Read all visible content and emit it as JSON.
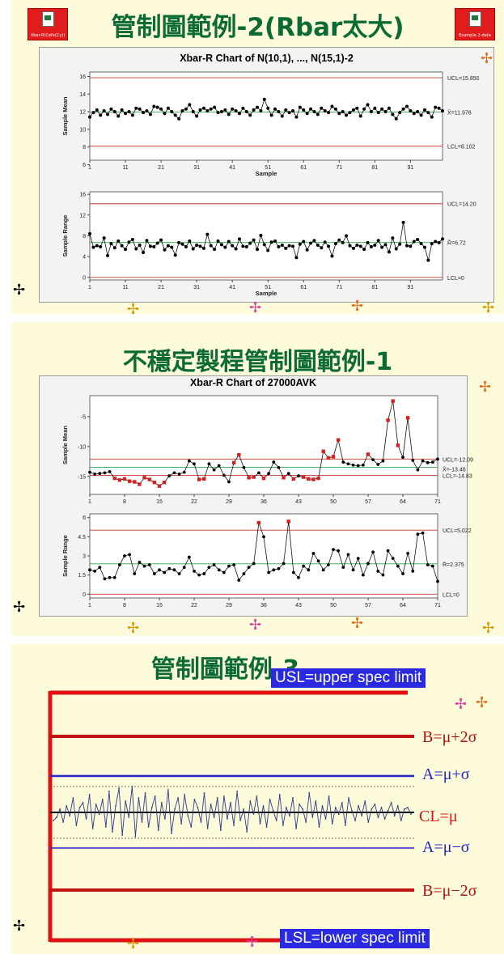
{
  "slide1": {
    "title": "管制圖範例-2(Rbar太大)",
    "icon_left_label": "Xbar-R(Cefe(Cy))",
    "icon_right_label": "Example 2-data",
    "chart_title": "Xbar-R Chart of N(10,1), ..., N(15,1)-2",
    "colors": {
      "limit": "#c0392b",
      "center": "#2ea44a",
      "series": "#000000"
    }
  },
  "slide2": {
    "title": "不穩定製程管制圖範例-1",
    "chart_title": "Xbar-R Chart of 27000AVK"
  },
  "slide3": {
    "title": "管制圖範例-3",
    "usl": "USL=upper spec limit",
    "lsl": "LSL=lower spec limit",
    "b_plus": "B=μ+2σ",
    "a_plus": "A=μ+σ",
    "cl": "CL=μ",
    "a_minus": "A=μ−σ",
    "b_minus": "B=μ−2σ"
  },
  "chart_data": [
    {
      "type": "line",
      "id": "c1_mean",
      "ylabel": "Sample Mean",
      "xlabel": "Sample",
      "xlim": [
        1,
        100
      ],
      "ylim": [
        6.5,
        16.5
      ],
      "yticks": [
        6,
        8,
        10,
        12,
        14,
        16
      ],
      "xticks": [
        1,
        11,
        21,
        31,
        41,
        51,
        61,
        71,
        81,
        91
      ],
      "limits": [
        {
          "name": "UCL",
          "label": "UCL=15.850",
          "value": 15.85,
          "kind": "limit"
        },
        {
          "name": "center",
          "label": "X̄=11.976",
          "value": 11.976,
          "kind": "center"
        },
        {
          "name": "LCL",
          "label": "LCL=8.102",
          "value": 8.102,
          "kind": "limit"
        }
      ],
      "values": [
        11.4,
        11.9,
        12.2,
        11.6,
        12.1,
        11.7,
        12.3,
        12.0,
        11.5,
        12.2,
        11.8,
        12.0,
        11.6,
        12.4,
        12.3,
        11.9,
        12.1,
        11.7,
        12.6,
        12.5,
        12.3,
        11.8,
        12.4,
        12.0,
        11.6,
        11.2,
        12.1,
        12.3,
        12.8,
        12.0,
        11.5,
        12.2,
        12.4,
        12.1,
        12.3,
        12.5,
        11.9,
        12.0,
        12.2,
        11.7,
        12.3,
        12.1,
        11.8,
        12.4,
        12.0,
        11.6,
        12.2,
        12.5,
        12.1,
        13.4,
        12.4,
        11.6,
        12.3,
        12.0,
        11.5,
        12.2,
        11.9,
        12.1,
        11.4,
        12.5,
        12.2,
        11.8,
        12.3,
        12.0,
        11.7,
        12.4,
        12.1,
        11.9,
        12.6,
        12.3,
        11.8,
        12.0,
        11.6,
        11.9,
        12.2,
        12.4,
        11.5,
        12.3,
        12.8,
        12.0,
        12.4,
        11.9,
        12.3,
        12.0,
        12.4,
        11.7,
        11.2,
        11.9,
        12.3,
        12.6,
        12.1,
        11.8,
        12.0,
        11.6,
        12.2,
        11.9,
        11.4,
        12.5,
        12.4,
        12.1
      ]
    },
    {
      "type": "line",
      "id": "c1_range",
      "ylabel": "Sample Range",
      "xlabel": "Sample",
      "xlim": [
        1,
        100
      ],
      "ylim": [
        -0.5,
        16.5
      ],
      "yticks": [
        0,
        4,
        8,
        12,
        16
      ],
      "xticks": [
        1,
        11,
        21,
        31,
        41,
        51,
        61,
        71,
        81,
        91
      ],
      "limits": [
        {
          "name": "UCL",
          "label": "UCL=14.20",
          "value": 14.2,
          "kind": "limit"
        },
        {
          "name": "center",
          "label": "R̄=6.72",
          "value": 6.72,
          "kind": "center"
        },
        {
          "name": "LCL",
          "label": "LCL=0",
          "value": 0,
          "kind": "limit"
        }
      ],
      "values": [
        8.4,
        5.8,
        6.1,
        5.9,
        7.6,
        4.2,
        6.5,
        5.7,
        7.0,
        6.1,
        5.4,
        6.8,
        7.3,
        5.5,
        6.2,
        4.8,
        7.1,
        6.0,
        5.9,
        6.6,
        7.2,
        5.3,
        6.1,
        5.8,
        4.3,
        6.7,
        6.4,
        5.9,
        7.0,
        5.5,
        6.2,
        6.0,
        5.6,
        8.3,
        6.1,
        5.4,
        7.0,
        6.3,
        5.8,
        6.9,
        6.1,
        5.5,
        7.4,
        6.0,
        5.9,
        6.6,
        7.2,
        5.4,
        8.1,
        6.3,
        5.2,
        6.8,
        7.0,
        5.9,
        6.2,
        5.6,
        6.1,
        6.0,
        3.8,
        6.4,
        6.9,
        5.3,
        6.6,
        7.1,
        6.2,
        5.7,
        6.8,
        6.0,
        4.1,
        6.5,
        7.2,
        6.7,
        8.0,
        6.1,
        5.6,
        6.2,
        6.0,
        5.4,
        6.7,
        5.9,
        6.2,
        7.1,
        5.8,
        6.3,
        4.9,
        7.6,
        5.5,
        6.4,
        10.6,
        6.1,
        6.0,
        6.9,
        7.3,
        6.5,
        5.8,
        3.3,
        6.5,
        6.9,
        6.7,
        7.4
      ]
    },
    {
      "type": "line",
      "id": "c2_mean",
      "ylabel": "Sample Mean",
      "xlabel": "",
      "xlim": [
        1,
        71
      ],
      "ylim": [
        -18,
        -1.5
      ],
      "yticks": [
        -15,
        -10,
        -5
      ],
      "xticks": [
        1,
        8,
        15,
        22,
        29,
        36,
        43,
        50,
        57,
        64,
        71
      ],
      "limits": [
        {
          "name": "UCL",
          "label": "UCL=-12.09",
          "value": -12.09,
          "kind": "limit"
        },
        {
          "name": "center",
          "label": "X̄=-13.46",
          "value": -13.46,
          "kind": "center"
        },
        {
          "name": "LCL",
          "label": "LCL=-14.83",
          "value": -14.83,
          "kind": "limit"
        }
      ],
      "values": [
        -14.3,
        -14.6,
        -14.5,
        -14.4,
        -14.2,
        -15.3,
        -15.6,
        -15.4,
        -15.8,
        -15.9,
        -16.3,
        -15.2,
        -15.5,
        -16.0,
        -16.6,
        -16.0,
        -14.9,
        -14.4,
        -14.6,
        -14.3,
        -12.4,
        -12.9,
        -15.5,
        -15.4,
        -12.9,
        -13.9,
        -13.2,
        -14.8,
        -15.9,
        -12.7,
        -11.4,
        -13.5,
        -15.2,
        -15.1,
        -14.4,
        -15.3,
        -14.5,
        -12.6,
        -13.5,
        -15.2,
        -14.5,
        -15.4,
        -14.9,
        -15.1,
        -15.4,
        -15.5,
        -15.3,
        -10.8,
        -11.9,
        -11.7,
        -8.9,
        -12.6,
        -12.9,
        -13.1,
        -13.2,
        -13.1,
        -11.3,
        -12.2,
        -13.0,
        -12.4,
        -5.6,
        -2.4,
        -9.8,
        -11.8,
        -5.2,
        -12.3,
        -13.9,
        -12.4,
        -12.7,
        -12.6,
        -12.1
      ],
      "flagged": [
        6,
        7,
        8,
        9,
        10,
        11,
        12,
        13,
        14,
        15,
        16,
        23,
        24,
        30,
        31,
        33,
        34,
        36,
        40,
        42,
        44,
        45,
        46,
        47,
        48,
        49,
        50,
        51,
        57,
        61,
        62,
        63,
        65
      ]
    },
    {
      "type": "line",
      "id": "c2_range",
      "ylabel": "Sample Range",
      "xlabel": "",
      "xlim": [
        1,
        71
      ],
      "ylim": [
        -0.3,
        6.3
      ],
      "yticks": [
        0.0,
        1.5,
        3.0,
        4.5,
        6.0
      ],
      "xticks": [
        1,
        8,
        15,
        22,
        29,
        36,
        43,
        50,
        57,
        64,
        71
      ],
      "limits": [
        {
          "name": "UCL",
          "label": "UCL=5.022",
          "value": 5.022,
          "kind": "limit"
        },
        {
          "name": "center",
          "label": "R̄=2.375",
          "value": 2.375,
          "kind": "center"
        },
        {
          "name": "LCL",
          "label": "LCL=0",
          "value": 0,
          "kind": "limit"
        }
      ],
      "values": [
        1.9,
        1.8,
        2.1,
        1.2,
        1.3,
        1.3,
        2.3,
        3.0,
        3.1,
        1.6,
        2.5,
        2.2,
        2.3,
        1.6,
        1.9,
        1.7,
        2.0,
        1.9,
        1.6,
        2.1,
        2.9,
        1.8,
        1.5,
        1.6,
        2.1,
        2.3,
        1.9,
        1.7,
        2.2,
        2.3,
        1.1,
        1.6,
        2.1,
        2.4,
        5.6,
        4.5,
        1.7,
        1.9,
        2.0,
        2.4,
        5.7,
        1.7,
        1.3,
        2.2,
        1.9,
        3.2,
        2.6,
        1.9,
        2.3,
        3.5,
        3.4,
        2.1,
        3.1,
        1.9,
        2.8,
        1.5,
        2.4,
        3.3,
        1.8,
        1.5,
        3.4,
        2.8,
        2.2,
        1.6,
        3.2,
        1.8,
        4.7,
        4.8,
        2.3,
        2.2,
        1.0
      ],
      "flagged": [
        35,
        41
      ]
    },
    {
      "type": "line",
      "id": "c3_series",
      "ylim": [
        -2.4,
        2.4
      ],
      "values": [
        -0.5,
        -0.3,
        0.2,
        -0.6,
        0.4,
        -0.2,
        0.9,
        -0.8,
        0.3,
        0.6,
        -0.4,
        1.1,
        -1.0,
        0.5,
        -0.1,
        0.8,
        -0.9,
        1.3,
        -1.2,
        0.4,
        1.5,
        -1.4,
        0.7,
        -0.3,
        1.6,
        -1.5,
        0.9,
        -0.6,
        1.2,
        -0.9,
        0.3,
        1.0,
        -1.1,
        0.6,
        -0.4,
        1.4,
        -1.3,
        0.2,
        0.9,
        -0.7,
        1.1,
        -0.2,
        -0.9,
        0.8,
        0.3,
        -0.6,
        1.2,
        -1.0,
        0.5,
        -0.3,
        0.9,
        -1.1,
        1.0,
        -0.4,
        0.6,
        -0.8,
        1.3,
        -0.5,
        0.2,
        -1.2,
        0.7,
        -0.1,
        1.0,
        -0.7,
        0.4,
        -0.9,
        0.8,
        0.1,
        -0.5,
        1.1,
        -0.8,
        0.3,
        -0.2,
        0.9,
        -1.0,
        0.5,
        0.2,
        -0.6,
        1.2,
        -0.3,
        0.7,
        -0.9,
        0.4,
        -0.4,
        1.0,
        -0.7,
        0.3,
        -0.1,
        0.6,
        -0.8,
        0.9,
        0.1,
        -0.5,
        0.4,
        -0.2,
        0.7,
        -0.6,
        0.2,
        0.5,
        -0.3,
        0.3,
        -0.4,
        0.1,
        0.6,
        -0.2,
        0.4,
        -0.5,
        0.2,
        0.3,
        -0.1
      ],
      "colors": {
        "series": "#2b3a8c",
        "cl": "#000000",
        "sigma": "#2323c8",
        "two_sigma": "#c01212",
        "spec": "#e01212"
      }
    }
  ]
}
